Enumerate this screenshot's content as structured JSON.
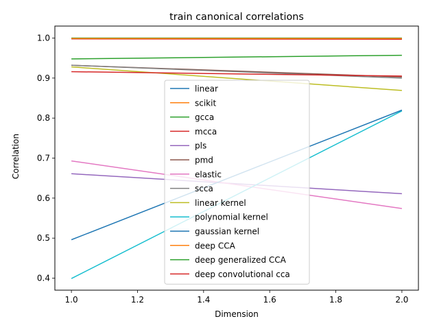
{
  "chart_data": {
    "type": "line",
    "title": "train canonical correlations",
    "xlabel": "Dimension",
    "ylabel": "Correlation",
    "xlim": [
      0.95,
      2.05
    ],
    "ylim": [
      0.37,
      1.03
    ],
    "xticks": [
      1.0,
      1.2,
      1.4,
      1.6,
      1.8,
      2.0
    ],
    "xtick_labels": [
      "1.0",
      "1.2",
      "1.4",
      "1.6",
      "1.8",
      "2.0"
    ],
    "yticks": [
      0.4,
      0.5,
      0.6,
      0.7,
      0.8,
      0.9,
      1.0
    ],
    "ytick_labels": [
      "0.4",
      "0.5",
      "0.6",
      "0.7",
      "0.8",
      "0.9",
      "1.0"
    ],
    "grid": false,
    "legend_position": "center",
    "x": [
      1,
      2
    ],
    "series": [
      {
        "name": "linear",
        "color": "#1f77b4",
        "values": [
          0.998,
          0.998
        ]
      },
      {
        "name": "scikit",
        "color": "#ff7f0e",
        "values": [
          0.999,
          0.999
        ]
      },
      {
        "name": "gcca",
        "color": "#2ca02c",
        "values": [
          1.0,
          1.0
        ]
      },
      {
        "name": "mcca",
        "color": "#d62728",
        "values": [
          0.998,
          0.997
        ]
      },
      {
        "name": "pls",
        "color": "#9467bd",
        "values": [
          0.661,
          0.611
        ]
      },
      {
        "name": "pmd",
        "color": "#8c564b",
        "values": [
          0.932,
          0.903
        ]
      },
      {
        "name": "elastic",
        "color": "#e377c2",
        "values": [
          0.693,
          0.574
        ]
      },
      {
        "name": "scca",
        "color": "#7f7f7f",
        "values": [
          0.932,
          0.9
        ]
      },
      {
        "name": "linear kernel",
        "color": "#bcbd22",
        "values": [
          0.928,
          0.869
        ]
      },
      {
        "name": "polynomial kernel",
        "color": "#17becf",
        "values": [
          0.399,
          0.818
        ]
      },
      {
        "name": "gaussian kernel",
        "color": "#1f77b4",
        "values": [
          0.496,
          0.82
        ]
      },
      {
        "name": "deep CCA",
        "color": "#ff7f0e",
        "values": [
          0.999,
          0.999
        ]
      },
      {
        "name": "deep generalized CCA",
        "color": "#2ca02c",
        "values": [
          0.948,
          0.957
        ]
      },
      {
        "name": "deep convolutional cca",
        "color": "#d62728",
        "values": [
          0.916,
          0.905
        ]
      }
    ]
  }
}
